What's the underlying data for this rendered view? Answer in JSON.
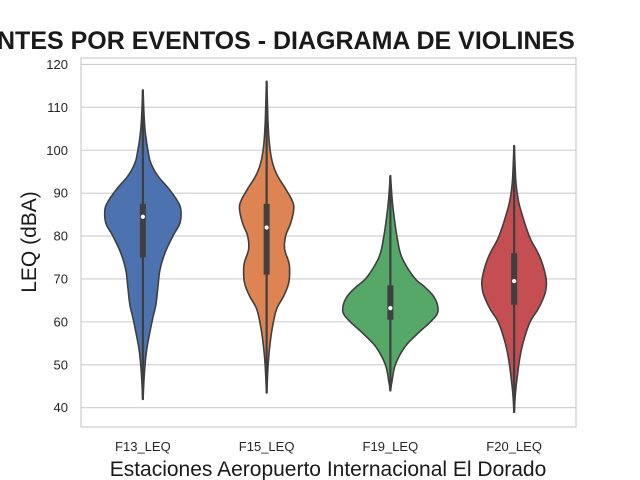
{
  "chart_data": {
    "type": "violin",
    "title": "NIVELES DE RUIDO AMBIENTES POR EVENTOS - DIAGRAMA DE VIOLINES",
    "visible_title": "NTES POR EVENTOS - DIAGRAMA DE VIOLINES",
    "xlabel": "Estaciones Aeropuerto Internacional El Dorado",
    "ylabel": "LEQ (dBA)",
    "ylim": [
      35.5,
      121.5
    ],
    "yticks": [
      40,
      50,
      60,
      70,
      80,
      90,
      100,
      110,
      120
    ],
    "categories": [
      "F13_LEQ",
      "F15_LEQ",
      "F19_LEQ",
      "F20_LEQ"
    ],
    "grid": true,
    "colors": [
      "#4c72b0",
      "#dd8452",
      "#55a868",
      "#c44e52"
    ],
    "series": [
      {
        "name": "F13_LEQ",
        "color": "#4c72b0",
        "min": 42,
        "max": 114,
        "q1": 75,
        "median": 84.5,
        "q3": 87.5,
        "profile": [
          [
            42,
            0.2
          ],
          [
            48,
            1.5
          ],
          [
            53,
            3.5
          ],
          [
            57,
            6.5
          ],
          [
            61,
            10
          ],
          [
            64,
            13
          ],
          [
            68,
            15
          ],
          [
            72,
            17
          ],
          [
            76,
            22
          ],
          [
            80,
            30
          ],
          [
            83,
            37
          ],
          [
            86,
            38
          ],
          [
            88,
            35
          ],
          [
            91,
            26
          ],
          [
            94,
            15
          ],
          [
            97,
            8
          ],
          [
            100,
            5
          ],
          [
            104,
            2.5
          ],
          [
            108,
            1.2
          ],
          [
            114,
            0.2
          ]
        ]
      },
      {
        "name": "F15_LEQ",
        "color": "#dd8452",
        "min": 43.5,
        "max": 116,
        "q1": 71,
        "median": 82,
        "q3": 87.5,
        "profile": [
          [
            43.5,
            0.2
          ],
          [
            50,
            1.5
          ],
          [
            55,
            3.5
          ],
          [
            59,
            6
          ],
          [
            63,
            10
          ],
          [
            66,
            17
          ],
          [
            69,
            22
          ],
          [
            72,
            23
          ],
          [
            74,
            22
          ],
          [
            77,
            18
          ],
          [
            80,
            19
          ],
          [
            83,
            24
          ],
          [
            86,
            27
          ],
          [
            88,
            26
          ],
          [
            91,
            19
          ],
          [
            94,
            11
          ],
          [
            97,
            6
          ],
          [
            101,
            3
          ],
          [
            106,
            1.5
          ],
          [
            111,
            0.8
          ],
          [
            116,
            0.2
          ]
        ]
      },
      {
        "name": "F19_LEQ",
        "color": "#55a868",
        "min": 44,
        "max": 94,
        "q1": 60.5,
        "median": 63.2,
        "q3": 68.5,
        "profile": [
          [
            44,
            0.2
          ],
          [
            46,
            1.5
          ],
          [
            50,
            5
          ],
          [
            54,
            14
          ],
          [
            57,
            26
          ],
          [
            60,
            40
          ],
          [
            62,
            47
          ],
          [
            64,
            47
          ],
          [
            66,
            43
          ],
          [
            68,
            35
          ],
          [
            70,
            25
          ],
          [
            73,
            16
          ],
          [
            76,
            10
          ],
          [
            80,
            6.5
          ],
          [
            84,
            4
          ],
          [
            88,
            2
          ],
          [
            91,
            1
          ],
          [
            94,
            0.2
          ]
        ]
      },
      {
        "name": "F20_LEQ",
        "color": "#c44e52",
        "min": 39,
        "max": 101,
        "q1": 64,
        "median": 69.5,
        "q3": 76,
        "profile": [
          [
            39,
            0.2
          ],
          [
            43,
            1.2
          ],
          [
            47,
            3
          ],
          [
            52,
            6
          ],
          [
            56,
            10
          ],
          [
            60,
            16
          ],
          [
            63,
            24
          ],
          [
            66,
            30
          ],
          [
            68,
            32
          ],
          [
            70,
            32
          ],
          [
            73,
            29
          ],
          [
            76,
            24
          ],
          [
            79,
            17
          ],
          [
            82,
            12
          ],
          [
            85,
            8
          ],
          [
            88,
            4.5
          ],
          [
            92,
            2
          ],
          [
            96,
            1
          ],
          [
            101,
            0.2
          ]
        ]
      }
    ]
  }
}
